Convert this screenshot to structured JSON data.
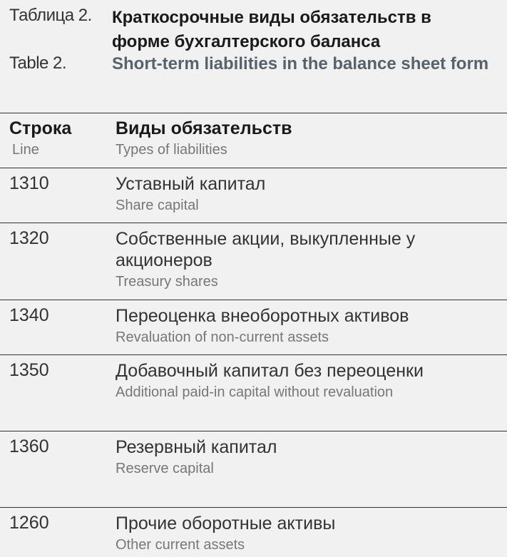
{
  "caption": {
    "ru_label": "Таблица 2.",
    "ru_title": "Краткосрочные виды обязательств в форме бухгалтерского баланса",
    "en_label": "Table 2.",
    "en_title": "Short-term liabilities in the balance sheet form"
  },
  "header": {
    "col1_ru": "Строка",
    "col1_en": "Line",
    "col2_ru": "Виды обязательств",
    "col2_en": "Types of liabilities"
  },
  "rows": [
    {
      "line": "1310",
      "ru": "Уставный капитал",
      "en": "Share capital"
    },
    {
      "line": "1320",
      "ru": "Собственные акции, выкупленные у акционеров",
      "en": "Treasury shares"
    },
    {
      "line": "1340",
      "ru": "Переоценка внеоборотных активов",
      "en": "Revaluation of non-current assets"
    },
    {
      "line": "1350",
      "ru": "Добавочный капитал без переоценки",
      "en": "Additional paid-in capital without revaluation"
    },
    {
      "line": "1360",
      "ru": "Резервный капитал",
      "en": "Reserve capital"
    },
    {
      "line": "1260",
      "ru": "Прочие оборотные активы",
      "en": "Other current assets"
    }
  ]
}
